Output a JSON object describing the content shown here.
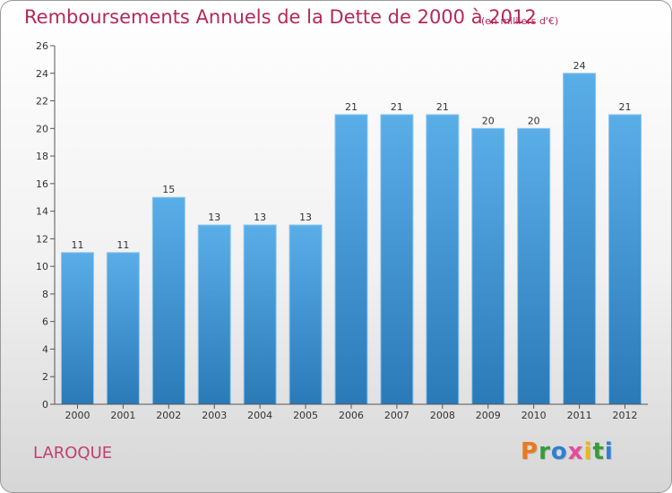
{
  "title": "Remboursements Annuels de la Dette de 2000 à 2012",
  "subtitle": "(en milliers d'€)",
  "commune": "LAROQUE",
  "logo": {
    "text": "Proxiti",
    "letters": [
      {
        "ch": "P",
        "color": "#e87a1e"
      },
      {
        "ch": "r",
        "color": "#3a9a3a"
      },
      {
        "ch": "o",
        "color": "#2f7fd4"
      },
      {
        "ch": "x",
        "color": "#e84a9a"
      },
      {
        "ch": "i",
        "color": "#e8b81e"
      },
      {
        "ch": "t",
        "color": "#3a9a3a"
      },
      {
        "ch": "i",
        "color": "#2f7fd4"
      }
    ]
  },
  "colors": {
    "title": "#b5285a",
    "bar_top": "#5aaee8",
    "bar_bottom": "#2a7ab8",
    "axis": "#555555"
  },
  "chart_data": {
    "type": "bar",
    "categories": [
      "2000",
      "2001",
      "2002",
      "2003",
      "2004",
      "2005",
      "2006",
      "2007",
      "2008",
      "2009",
      "2010",
      "2011",
      "2012"
    ],
    "values": [
      11,
      11,
      15,
      13,
      13,
      13,
      21,
      21,
      21,
      20,
      20,
      24,
      21
    ],
    "ylim": [
      0,
      26
    ],
    "yticks": [
      0,
      2,
      4,
      6,
      8,
      10,
      12,
      14,
      16,
      18,
      20,
      22,
      24,
      26
    ],
    "grid": false,
    "data_labels": true
  }
}
